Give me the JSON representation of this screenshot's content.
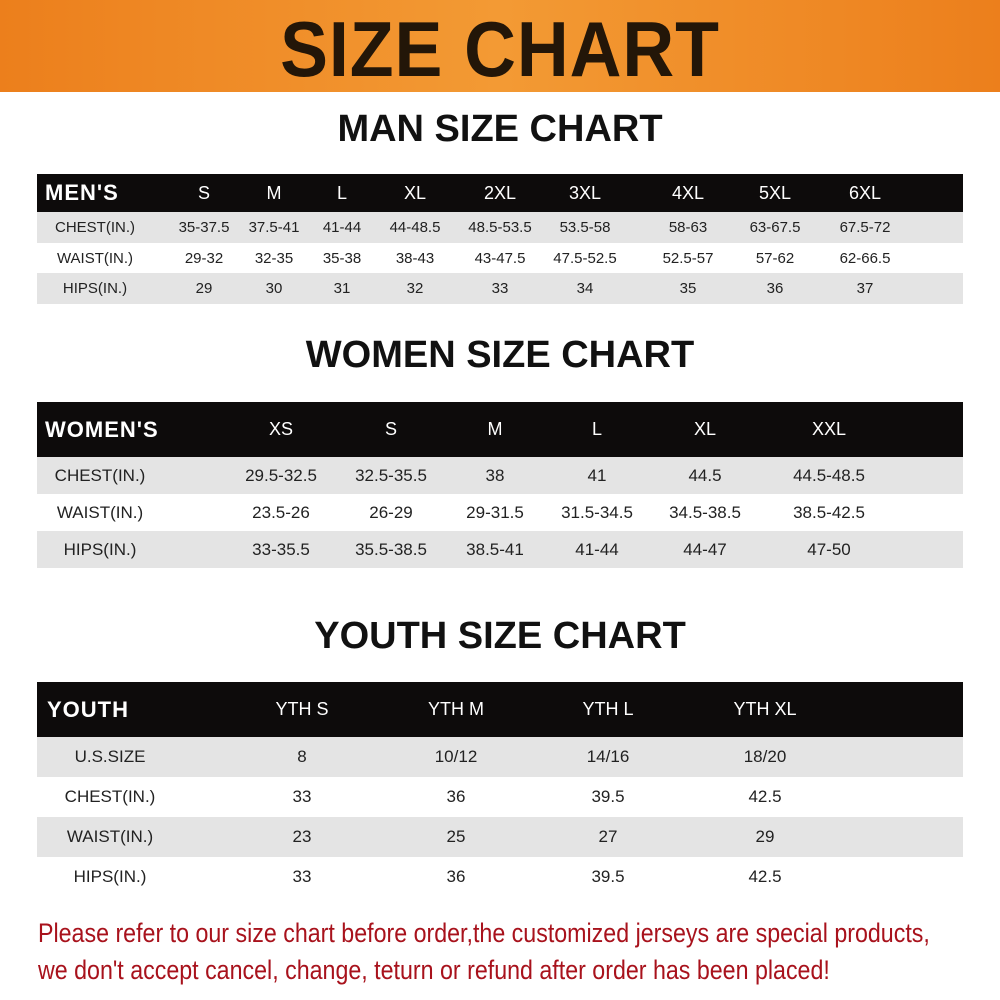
{
  "banner": {
    "title": "SIZE CHART",
    "color": "#ec7f1c"
  },
  "men": {
    "title": "MAN SIZE CHART",
    "header": [
      "MEN'S",
      "S",
      "M",
      "L",
      "XL",
      "2XL",
      "3XL",
      "4XL",
      "5XL",
      "6XL"
    ],
    "rows": [
      [
        "CHEST(IN.)",
        "35-37.5",
        "37.5-41",
        "41-44",
        "44-48.5",
        "48.5-53.5",
        "53.5-58",
        "58-63",
        "63-67.5",
        "67.5-72"
      ],
      [
        "WAIST(IN.)",
        "29-32",
        "32-35",
        "35-38",
        "38-43",
        "43-47.5",
        "47.5-52.5",
        "52.5-57",
        "57-62",
        "62-66.5"
      ],
      [
        "HIPS(IN.)",
        "29",
        "30",
        "31",
        "32",
        "33",
        "34",
        "35",
        "36",
        "37"
      ]
    ]
  },
  "women": {
    "title": "WOMEN SIZE CHART",
    "header": [
      "WOMEN'S",
      "XS",
      "S",
      "M",
      "L",
      "XL",
      "XXL"
    ],
    "rows": [
      [
        "CHEST(IN.)",
        "29.5-32.5",
        "32.5-35.5",
        "38",
        "41",
        "44.5",
        "44.5-48.5"
      ],
      [
        "WAIST(IN.)",
        "23.5-26",
        "26-29",
        "29-31.5",
        "31.5-34.5",
        "34.5-38.5",
        "38.5-42.5"
      ],
      [
        "HIPS(IN.)",
        "33-35.5",
        "35.5-38.5",
        "38.5-41",
        "41-44",
        "44-47",
        "47-50"
      ]
    ]
  },
  "youth": {
    "title": "YOUTH SIZE CHART",
    "header": [
      "YOUTH",
      "YTH S",
      "YTH M",
      "YTH L",
      "YTH XL"
    ],
    "rows": [
      [
        "U.S.SIZE",
        "8",
        "10/12",
        "14/16",
        "18/20"
      ],
      [
        "CHEST(IN.)",
        "33",
        "36",
        "39.5",
        "42.5"
      ],
      [
        "WAIST(IN.)",
        "23",
        "25",
        "27",
        "29"
      ],
      [
        "HIPS(IN.)",
        "33",
        "36",
        "39.5",
        "42.5"
      ]
    ]
  },
  "footer": {
    "line1": "Please refer to our size chart before order,the customized jerseys are special products,",
    "line2": "we don't accept cancel, change, teturn or refund after order has been placed!",
    "color": "#a8121c"
  }
}
